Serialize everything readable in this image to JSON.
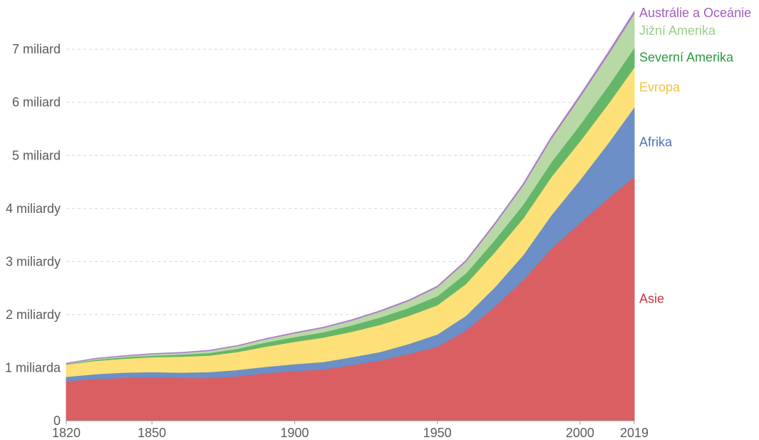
{
  "chart_data": {
    "type": "area",
    "stacked": true,
    "x": [
      1820,
      1830,
      1840,
      1850,
      1860,
      1870,
      1880,
      1890,
      1900,
      1910,
      1920,
      1930,
      1940,
      1950,
      1960,
      1970,
      1980,
      1990,
      2000,
      2010,
      2019
    ],
    "xlim": [
      1820,
      2019
    ],
    "ylim": [
      0,
      7.7
    ],
    "x_ticks": [
      {
        "value": 1820,
        "label": "1820"
      },
      {
        "value": 1850,
        "label": "1850"
      },
      {
        "value": 1900,
        "label": "1900"
      },
      {
        "value": 1950,
        "label": "1950"
      },
      {
        "value": 2000,
        "label": "2000"
      },
      {
        "value": 2019,
        "label": "2019"
      }
    ],
    "y_ticks": [
      {
        "value": 0,
        "label": "0"
      },
      {
        "value": 1,
        "label": "1 miliarda"
      },
      {
        "value": 2,
        "label": "2 miliardy"
      },
      {
        "value": 3,
        "label": "3 miliardy"
      },
      {
        "value": 4,
        "label": "4 miliardy"
      },
      {
        "value": 5,
        "label": "5 miliard"
      },
      {
        "value": 6,
        "label": "6 miliard"
      },
      {
        "value": 7,
        "label": "7 miliard"
      }
    ],
    "grid": true,
    "legend": "right end labels",
    "series": [
      {
        "name": "Asie",
        "color": "#d95f63",
        "values": [
          0.75,
          0.79,
          0.81,
          0.82,
          0.81,
          0.81,
          0.84,
          0.9,
          0.94,
          0.97,
          1.05,
          1.14,
          1.26,
          1.4,
          1.7,
          2.15,
          2.65,
          3.25,
          3.73,
          4.2,
          4.6
        ]
      },
      {
        "name": "Afrika",
        "color": "#6b8fc6",
        "values": [
          0.08,
          0.09,
          0.1,
          0.1,
          0.1,
          0.11,
          0.12,
          0.12,
          0.13,
          0.14,
          0.15,
          0.16,
          0.19,
          0.23,
          0.28,
          0.36,
          0.47,
          0.63,
          0.81,
          1.04,
          1.31
        ]
      },
      {
        "name": "Evropa",
        "color": "#fde077",
        "values": [
          0.23,
          0.25,
          0.26,
          0.28,
          0.3,
          0.31,
          0.34,
          0.38,
          0.42,
          0.46,
          0.48,
          0.51,
          0.53,
          0.55,
          0.6,
          0.66,
          0.69,
          0.72,
          0.73,
          0.74,
          0.75
        ]
      },
      {
        "name": "Severní Amerika",
        "color": "#66b66a",
        "values": [
          0.01,
          0.02,
          0.03,
          0.03,
          0.04,
          0.05,
          0.06,
          0.08,
          0.09,
          0.1,
          0.12,
          0.14,
          0.15,
          0.17,
          0.2,
          0.23,
          0.26,
          0.28,
          0.31,
          0.34,
          0.37
        ]
      },
      {
        "name": "Jižní Amerika",
        "color": "#b8d9a6",
        "values": [
          0.01,
          0.02,
          0.02,
          0.03,
          0.03,
          0.04,
          0.05,
          0.06,
          0.07,
          0.08,
          0.09,
          0.11,
          0.13,
          0.17,
          0.22,
          0.29,
          0.36,
          0.44,
          0.52,
          0.59,
          0.64
        ]
      },
      {
        "name": "Austrálie a Oceánie",
        "color": "#b07cc8",
        "values": [
          0.002,
          0.002,
          0.003,
          0.003,
          0.004,
          0.005,
          0.006,
          0.007,
          0.008,
          0.009,
          0.01,
          0.011,
          0.012,
          0.013,
          0.016,
          0.019,
          0.023,
          0.027,
          0.031,
          0.036,
          0.042
        ]
      }
    ]
  }
}
